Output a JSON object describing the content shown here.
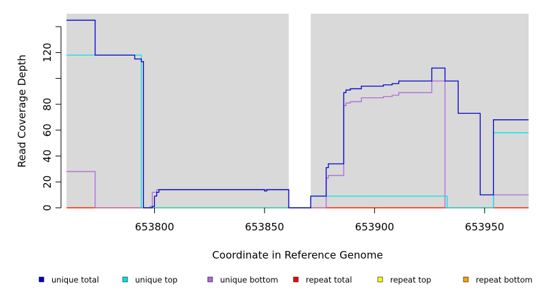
{
  "chart_data": {
    "type": "line",
    "xlabel": "Coordinate in Reference Genome",
    "ylabel": "Read Coverage Depth",
    "xlim": [
      653760,
      653970
    ],
    "ylim": [
      0,
      150
    ],
    "x_ticks": [
      653800,
      653850,
      653900,
      653950
    ],
    "x_tick_labels": [
      "653800",
      "653850",
      "653900",
      "653950"
    ],
    "y_ticks": [
      0,
      20,
      40,
      60,
      80,
      100,
      120,
      140
    ],
    "y_tick_labels": [
      "0",
      "20",
      "40",
      "60",
      "80",
      "",
      "120",
      ""
    ],
    "gap": [
      653861,
      653871
    ],
    "background": "#d9d9d9",
    "legend_position": "bottom",
    "series": [
      {
        "name": "unique total",
        "color": "#0000cc",
        "step": [
          [
            653760,
            145
          ],
          [
            653773,
            118
          ],
          [
            653791,
            115
          ],
          [
            653794,
            113
          ],
          [
            653795,
            0
          ],
          [
            653798,
            0
          ],
          [
            653799,
            1
          ],
          [
            653800,
            9
          ],
          [
            653801,
            12
          ],
          [
            653802,
            14
          ],
          [
            653849,
            14
          ],
          [
            653850,
            13
          ],
          [
            653851,
            14
          ],
          [
            653861,
            0
          ],
          [
            653871,
            9
          ],
          [
            653878,
            31
          ],
          [
            653879,
            34
          ],
          [
            653886,
            89
          ],
          [
            653887,
            91
          ],
          [
            653889,
            92
          ],
          [
            653894,
            94
          ],
          [
            653904,
            95
          ],
          [
            653908,
            96
          ],
          [
            653911,
            98
          ],
          [
            653926,
            108
          ],
          [
            653932,
            98
          ],
          [
            653938,
            73
          ],
          [
            653948,
            10
          ],
          [
            653954,
            68
          ],
          [
            653970,
            68
          ]
        ]
      },
      {
        "name": "unique top",
        "color": "#00e5e5",
        "step": [
          [
            653760,
            118
          ],
          [
            653794,
            0
          ],
          [
            653861,
            0
          ],
          [
            653871,
            9
          ],
          [
            653933,
            0
          ],
          [
            653954,
            58
          ],
          [
            653970,
            58
          ]
        ]
      },
      {
        "name": "unique bottom",
        "color": "#b06ad8",
        "step": [
          [
            653760,
            28
          ],
          [
            653773,
            0
          ],
          [
            653798,
            1
          ],
          [
            653799,
            12
          ],
          [
            653801,
            14
          ],
          [
            653851,
            14
          ],
          [
            653861,
            0
          ],
          [
            653878,
            23
          ],
          [
            653879,
            25
          ],
          [
            653886,
            79
          ],
          [
            653887,
            81
          ],
          [
            653889,
            82
          ],
          [
            653894,
            85
          ],
          [
            653904,
            86
          ],
          [
            653908,
            87
          ],
          [
            653911,
            89
          ],
          [
            653926,
            98
          ],
          [
            653932,
            0
          ],
          [
            653954,
            10
          ],
          [
            653970,
            10
          ]
        ]
      },
      {
        "name": "repeat total",
        "color": "#ff0000",
        "step": [
          [
            653760,
            0
          ],
          [
            653861,
            0
          ],
          [
            653871,
            0
          ],
          [
            653970,
            0
          ]
        ]
      },
      {
        "name": "repeat top",
        "color": "#ffff00",
        "step": [
          [
            653760,
            0
          ],
          [
            653861,
            0
          ],
          [
            653871,
            0
          ],
          [
            653970,
            0
          ]
        ]
      },
      {
        "name": "repeat bottom",
        "color": "#ffa500",
        "step": [
          [
            653760,
            0
          ],
          [
            653861,
            0
          ],
          [
            653871,
            0
          ],
          [
            653970,
            0
          ]
        ]
      }
    ]
  }
}
